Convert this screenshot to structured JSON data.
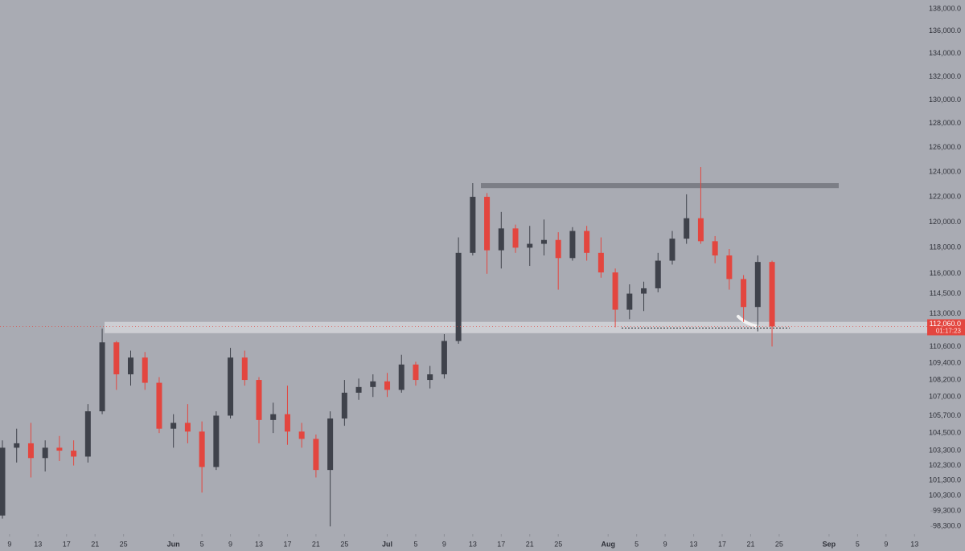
{
  "chart_data": {
    "type": "candlestick",
    "log_scale": true,
    "up_color": "#3f424b",
    "down_color": "#e3463f",
    "background": "#a9abb3",
    "x": [
      "05-08",
      "05-10",
      "05-12",
      "05-14",
      "05-16",
      "05-18",
      "05-20",
      "05-22",
      "05-24",
      "05-26",
      "05-28",
      "05-30",
      "06-01",
      "06-03",
      "06-05",
      "06-07",
      "06-09",
      "06-11",
      "06-13",
      "06-15",
      "06-17",
      "06-19",
      "06-21",
      "06-23",
      "06-25",
      "06-27",
      "06-29",
      "07-01",
      "07-03",
      "07-05",
      "07-07",
      "07-09",
      "07-11",
      "07-13",
      "07-15",
      "07-17",
      "07-19",
      "07-21",
      "07-23",
      "07-25",
      "07-27",
      "07-29",
      "07-31",
      "08-02",
      "08-04",
      "08-06",
      "08-08",
      "08-10",
      "08-12",
      "08-14",
      "08-16",
      "08-18",
      "08-20",
      "08-22",
      "08-24"
    ],
    "open": [
      99000,
      103500,
      103800,
      102800,
      103500,
      103300,
      102900,
      106000,
      110900,
      108600,
      109800,
      108000,
      104800,
      105200,
      104600,
      102200,
      105700,
      109800,
      108200,
      105400,
      105800,
      104600,
      104100,
      102000,
      105500,
      107300,
      107700,
      108100,
      107500,
      109300,
      108200,
      108600,
      111000,
      117600,
      122000,
      117800,
      119500,
      118000,
      118300,
      118600,
      117200,
      119300,
      117600,
      116100,
      113300,
      114500,
      114900,
      117000,
      118700,
      120300,
      118500,
      117400,
      115600,
      113500,
      116900
    ],
    "high": [
      104000,
      104800,
      105200,
      104000,
      104300,
      104000,
      106500,
      111900,
      111000,
      110300,
      110200,
      108400,
      105800,
      106500,
      105300,
      106000,
      110500,
      110300,
      108400,
      106600,
      107800,
      105200,
      104400,
      106000,
      108200,
      108300,
      108600,
      108700,
      110000,
      109500,
      109200,
      111500,
      118800,
      123100,
      122300,
      120800,
      119800,
      119700,
      120200,
      119200,
      119600,
      119700,
      118800,
      116400,
      115200,
      115400,
      117600,
      119300,
      122200,
      124400,
      118900,
      117900,
      115900,
      117400,
      117000
    ],
    "low": [
      98800,
      102500,
      101500,
      101900,
      102600,
      102300,
      102500,
      105800,
      107500,
      107800,
      107500,
      104500,
      103500,
      103800,
      100500,
      102000,
      105500,
      107800,
      103800,
      104500,
      103700,
      103500,
      101500,
      98300,
      105000,
      106800,
      107000,
      107000,
      107300,
      107800,
      107600,
      108300,
      110800,
      117400,
      116000,
      116400,
      117600,
      116600,
      117400,
      114800,
      117000,
      117000,
      115700,
      112000,
      112600,
      113200,
      114600,
      116700,
      118300,
      118300,
      116800,
      114800,
      112400,
      111700,
      110600
    ],
    "close": [
      103500,
      103800,
      102800,
      103500,
      103300,
      102900,
      106000,
      110900,
      108600,
      109800,
      108000,
      104800,
      105200,
      104600,
      102200,
      105700,
      109800,
      108200,
      105400,
      105800,
      104600,
      104100,
      102000,
      105500,
      107300,
      107700,
      108100,
      107500,
      109300,
      108200,
      108600,
      111000,
      117600,
      122000,
      117800,
      119500,
      118000,
      118300,
      118600,
      117200,
      119300,
      117600,
      116100,
      113300,
      114500,
      114900,
      117000,
      118700,
      120300,
      118500,
      117400,
      115600,
      113500,
      116900,
      112060
    ],
    "xlim": [
      "05-08",
      "09-15"
    ],
    "xticks": [
      {
        "value": "05-09",
        "label": "9"
      },
      {
        "value": "05-13",
        "label": "13"
      },
      {
        "value": "05-17",
        "label": "17"
      },
      {
        "value": "05-21",
        "label": "21"
      },
      {
        "value": "05-25",
        "label": "25"
      },
      {
        "value": "06-01",
        "label": "Jun"
      },
      {
        "value": "06-05",
        "label": "5"
      },
      {
        "value": "06-09",
        "label": "9"
      },
      {
        "value": "06-13",
        "label": "13"
      },
      {
        "value": "06-17",
        "label": "17"
      },
      {
        "value": "06-21",
        "label": "21"
      },
      {
        "value": "06-25",
        "label": "25"
      },
      {
        "value": "07-01",
        "label": "Jul"
      },
      {
        "value": "07-05",
        "label": "5"
      },
      {
        "value": "07-09",
        "label": "9"
      },
      {
        "value": "07-13",
        "label": "13"
      },
      {
        "value": "07-17",
        "label": "17"
      },
      {
        "value": "07-21",
        "label": "21"
      },
      {
        "value": "07-25",
        "label": "25"
      },
      {
        "value": "08-01",
        "label": "Aug"
      },
      {
        "value": "08-05",
        "label": "5"
      },
      {
        "value": "08-09",
        "label": "9"
      },
      {
        "value": "08-13",
        "label": "13"
      },
      {
        "value": "08-17",
        "label": "17"
      },
      {
        "value": "08-21",
        "label": "21"
      },
      {
        "value": "08-25",
        "label": "25"
      },
      {
        "value": "09-01",
        "label": "Sep"
      },
      {
        "value": "09-05",
        "label": "5"
      },
      {
        "value": "09-09",
        "label": "9"
      },
      {
        "value": "09-13",
        "label": "13"
      }
    ],
    "ylim": [
      97800,
      138800
    ],
    "yticks": [
      {
        "value": 138000,
        "label": "138,000.0"
      },
      {
        "value": 136000,
        "label": "136,000.0"
      },
      {
        "value": 134000,
        "label": "134,000.0"
      },
      {
        "value": 132000,
        "label": "132,000.0"
      },
      {
        "value": 130000,
        "label": "130,000.0"
      },
      {
        "value": 128000,
        "label": "128,000.0"
      },
      {
        "value": 126000,
        "label": "126,000.0"
      },
      {
        "value": 124000,
        "label": "124,000.0"
      },
      {
        "value": 122000,
        "label": "122,000.0"
      },
      {
        "value": 120000,
        "label": "120,000.0"
      },
      {
        "value": 118000,
        "label": "118,000.0"
      },
      {
        "value": 116000,
        "label": "116,000.0"
      },
      {
        "value": 114500,
        "label": "114,500.0"
      },
      {
        "value": 113000,
        "label": "113,000.0"
      },
      {
        "value": 110600,
        "label": "110,600.0"
      },
      {
        "value": 109400,
        "label": "109,400.0"
      },
      {
        "value": 108200,
        "label": "108,200.0"
      },
      {
        "value": 107000,
        "label": "107,000.0"
      },
      {
        "value": 105700,
        "label": "105,700.0"
      },
      {
        "value": 104500,
        "label": "104,500.0"
      },
      {
        "value": 103300,
        "label": "103,300.0"
      },
      {
        "value": 102300,
        "label": "102,300.0"
      },
      {
        "value": 101300,
        "label": "101,300.0"
      },
      {
        "value": 100300,
        "label": "100,300.0"
      },
      {
        "value": 99300,
        "label": "99,300.0"
      },
      {
        "value": 98300,
        "label": "98,300.0"
      }
    ],
    "resistance_zone": [
      122700,
      123100
    ],
    "support_zone": [
      111570,
      112400
    ],
    "support_line": 111950,
    "last_price": {
      "value": 112060,
      "label": "112,060.0",
      "countdown": "01:17:23"
    }
  }
}
